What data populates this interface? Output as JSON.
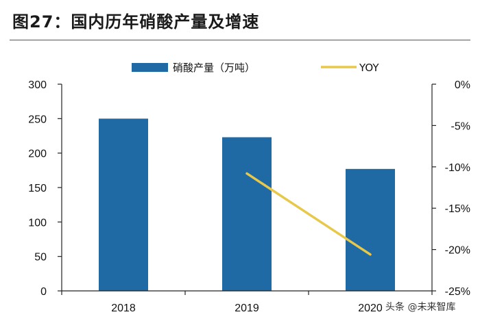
{
  "figure_title": "图27：国内历年硝酸产量及增速",
  "watermark": "头条 @未来智库",
  "colors": {
    "bar": "#1f6aa5",
    "line": "#e8c84a",
    "axis": "#222222"
  },
  "chart_data": {
    "type": "bar",
    "title": "图27：国内历年硝酸产量及增速",
    "categories": [
      "2018",
      "2019",
      "2020"
    ],
    "series": [
      {
        "name": "硝酸产量（万吨）",
        "type": "bar",
        "axis": "left",
        "values": [
          250,
          223,
          177
        ]
      },
      {
        "name": "YOY",
        "type": "line",
        "axis": "right",
        "values": [
          null,
          -10.8,
          -20.6
        ]
      }
    ],
    "left_axis": {
      "min": 0,
      "max": 300,
      "ticks": [
        0,
        50,
        100,
        150,
        200,
        250,
        300
      ],
      "labels": [
        "0",
        "50",
        "100",
        "150",
        "200",
        "250",
        "300"
      ]
    },
    "right_axis": {
      "min": -25,
      "max": 0,
      "ticks": [
        0,
        -5,
        -10,
        -15,
        -20,
        -25
      ],
      "labels": [
        "0%",
        "-5%",
        "-10%",
        "-15%",
        "-20%",
        "-25%"
      ]
    },
    "legend": {
      "position": "top",
      "items": [
        "硝酸产量（万吨）",
        "YOY"
      ]
    },
    "grid": false
  }
}
